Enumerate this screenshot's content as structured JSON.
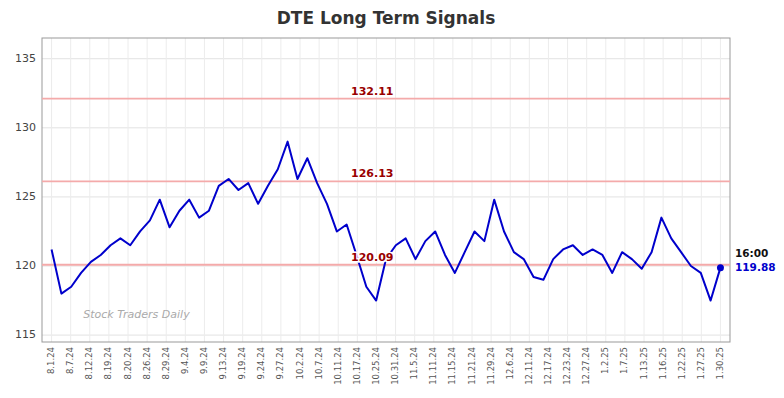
{
  "chart_data": {
    "type": "line",
    "title": "DTE Long Term Signals",
    "color": "#0000cc",
    "grid": true,
    "x": [
      0,
      0.5147058824,
      1.0294117647,
      1.5441176471,
      2.0588235294,
      2.5735294118,
      3.0882352941,
      3.6029411765,
      4.1176470588,
      4.6323529412,
      5.1470588235,
      5.6617647059,
      6.1764705882,
      6.6911764706,
      7.2058823529,
      7.7205882353,
      8.2352941176,
      8.75,
      9.2647058824,
      9.7794117647,
      10.2941176471,
      10.8088235294,
      11.3235294118,
      11.8382352941,
      12.3529411765,
      12.8676470588,
      13.3823529412,
      13.8970588235,
      14.4117647059,
      14.9264705882,
      15.4411764706,
      15.9558823529,
      16.4705882353,
      16.9852941176,
      17.5,
      18.0147058824,
      18.5294117647,
      19.0441176471,
      19.5588235294,
      20.0735294118,
      20.5882352941,
      21.1029411765,
      21.6176470588,
      22.1323529412,
      22.6470588235,
      23.1617647059,
      23.6764705882,
      24.1911764706,
      24.7058823529,
      25.2205882353,
      25.7352941176,
      26.25,
      26.7647058824,
      27.2794117647,
      27.7941176471,
      28.3088235294,
      28.8235294118,
      29.3382352941,
      29.8529411765,
      30.3676470588,
      30.8823529412,
      31.3970588235,
      31.9117647059,
      32.4264705882,
      32.9411764706,
      33.4558823529,
      33.9705882353,
      34.4852941176,
      35
    ],
    "values": [
      121.2,
      118.0,
      118.5,
      119.5,
      120.3,
      120.8,
      121.5,
      122.0,
      121.5,
      122.5,
      123.3,
      124.8,
      122.8,
      124.0,
      124.8,
      123.5,
      124.0,
      125.8,
      126.3,
      125.5,
      126.0,
      124.5,
      125.8,
      127.0,
      129.0,
      126.3,
      127.8,
      126.0,
      124.5,
      122.5,
      123.0,
      120.8,
      118.5,
      117.5,
      120.5,
      121.5,
      122.0,
      120.5,
      121.8,
      122.5,
      120.8,
      119.5,
      121.0,
      122.5,
      121.8,
      124.8,
      122.5,
      121.0,
      120.5,
      119.2,
      119.0,
      120.5,
      121.2,
      121.5,
      120.8,
      121.2,
      120.8,
      119.5,
      121.0,
      120.5,
      119.8,
      121.0,
      123.5,
      122.0,
      121.0,
      120.0,
      119.5,
      117.5,
      119.88
    ],
    "xlim": [
      -0.5,
      35.5
    ],
    "xticks": [
      {
        "value": 0,
        "label": "8.1.24"
      },
      {
        "value": 1,
        "label": "8.7.24"
      },
      {
        "value": 2,
        "label": "8.12.24"
      },
      {
        "value": 3,
        "label": "8.19.24"
      },
      {
        "value": 4,
        "label": "8.20.24"
      },
      {
        "value": 5,
        "label": "8.26.24"
      },
      {
        "value": 6,
        "label": "8.29.24"
      },
      {
        "value": 7,
        "label": "9.4.24"
      },
      {
        "value": 8,
        "label": "9.9.24"
      },
      {
        "value": 9,
        "label": "9.13.24"
      },
      {
        "value": 10,
        "label": "9.19.24"
      },
      {
        "value": 11,
        "label": "9.24.24"
      },
      {
        "value": 12,
        "label": "9.27.24"
      },
      {
        "value": 13,
        "label": "10.2.24"
      },
      {
        "value": 14,
        "label": "10.7.24"
      },
      {
        "value": 15,
        "label": "10.11.24"
      },
      {
        "value": 16,
        "label": "10.17.24"
      },
      {
        "value": 17,
        "label": "10.25.24"
      },
      {
        "value": 18,
        "label": "10.31.24"
      },
      {
        "value": 19,
        "label": "11.5.24"
      },
      {
        "value": 20,
        "label": "11.11.24"
      },
      {
        "value": 21,
        "label": "11.15.24"
      },
      {
        "value": 22,
        "label": "11.21.24"
      },
      {
        "value": 23,
        "label": "11.29.24"
      },
      {
        "value": 24,
        "label": "12.6.24"
      },
      {
        "value": 25,
        "label": "12.11.24"
      },
      {
        "value": 26,
        "label": "12.17.24"
      },
      {
        "value": 27,
        "label": "12.23.24"
      },
      {
        "value": 28,
        "label": "12.27.24"
      },
      {
        "value": 29,
        "label": "1.2.25"
      },
      {
        "value": 30,
        "label": "1.7.25"
      },
      {
        "value": 31,
        "label": "1.13.25"
      },
      {
        "value": 32,
        "label": "1.16.25"
      },
      {
        "value": 33,
        "label": "1.22.25"
      },
      {
        "value": 34,
        "label": "1.27.25"
      },
      {
        "value": 35,
        "label": "1.30.25"
      }
    ],
    "ylim": [
      114.5,
      136.5
    ],
    "yticks": [
      115,
      120,
      125,
      130,
      135
    ],
    "hlines": [
      {
        "value": 132.11,
        "label": "132.11",
        "color": "#f4aaaa"
      },
      {
        "value": 126.13,
        "label": "126.13",
        "color": "#f4aaaa"
      },
      {
        "value": 120.09,
        "label": "120.09",
        "color": "#f4aaaa"
      }
    ],
    "end_label": {
      "text": "16:00",
      "value": 119.88
    },
    "watermark": "Stock Traders Daily"
  }
}
